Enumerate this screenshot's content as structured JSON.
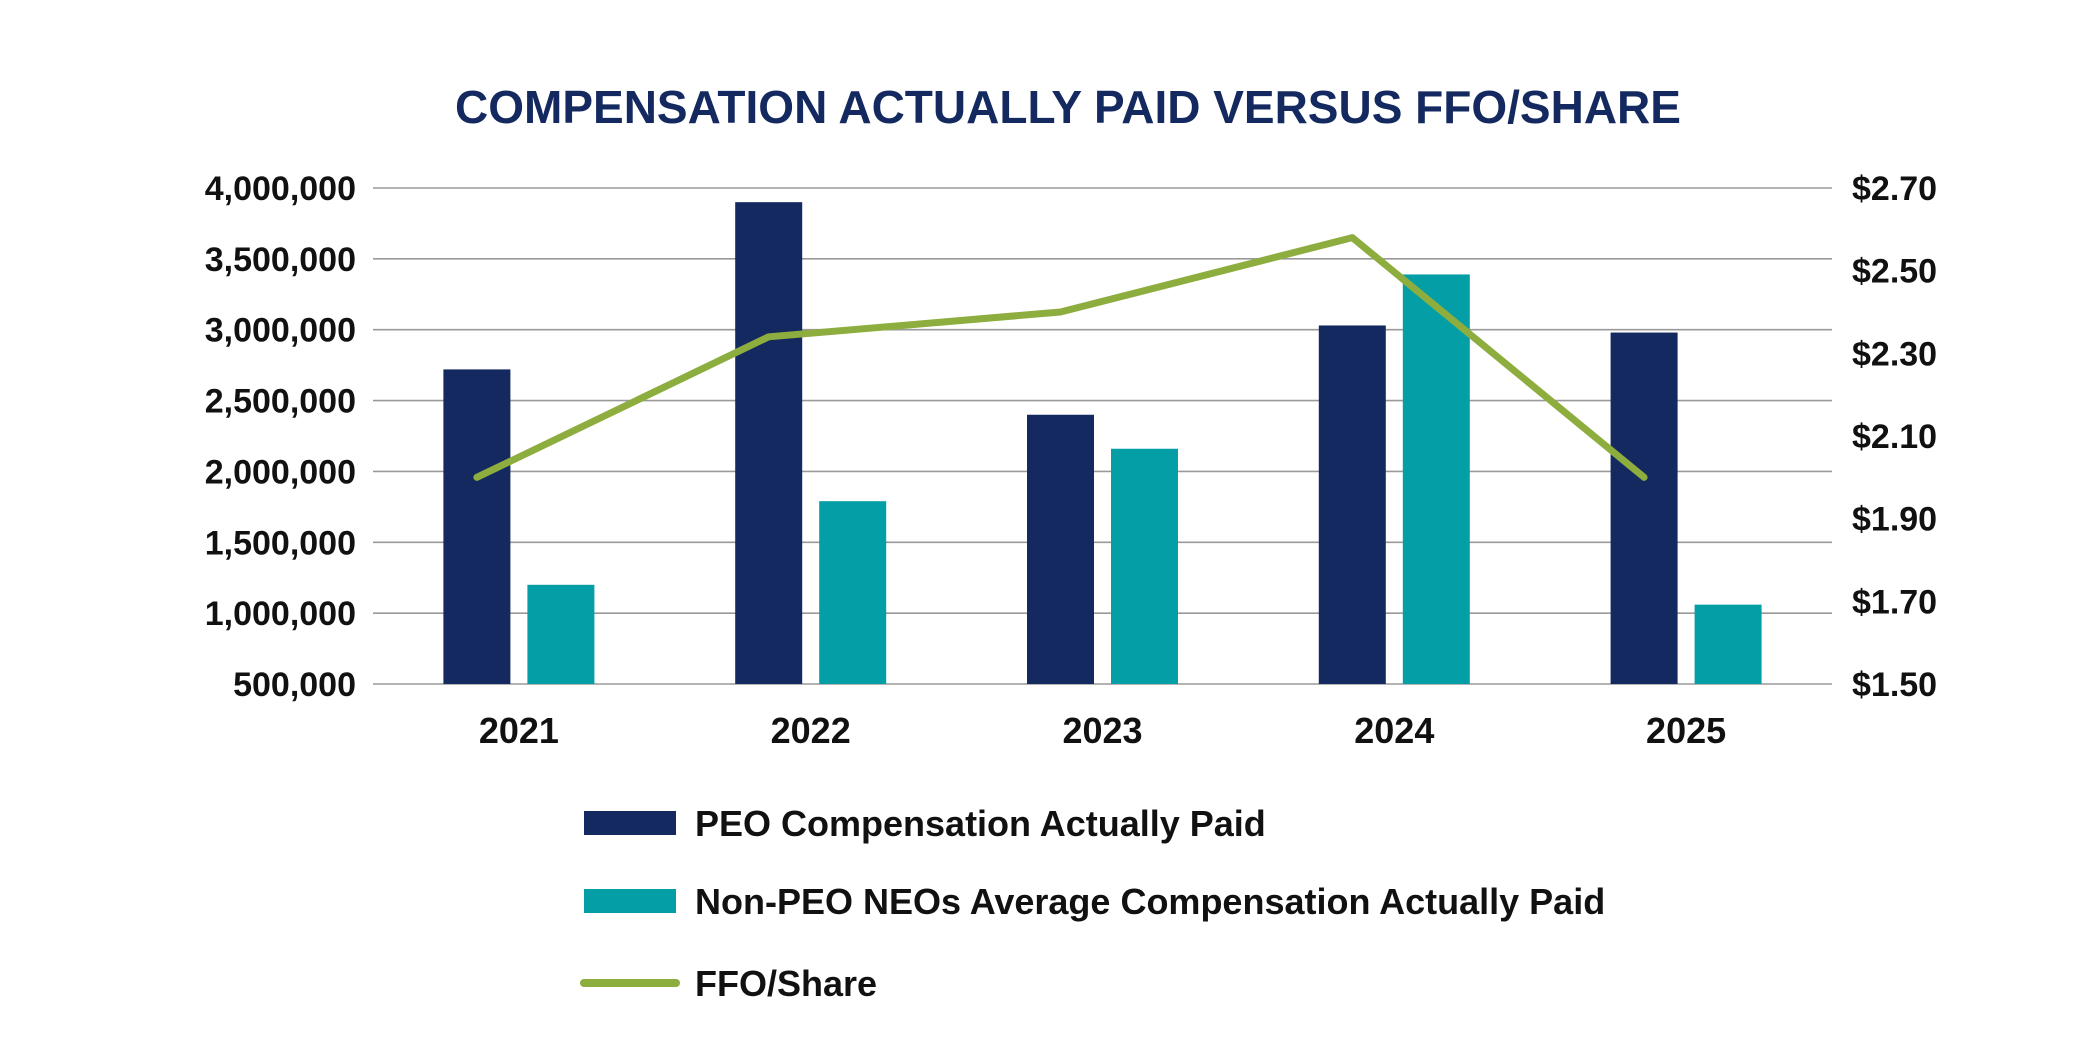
{
  "chart_data": {
    "type": "bar",
    "title": "COMPENSATION ACTUALLY PAID VERSUS FFO/SHARE",
    "categories": [
      "2021",
      "2022",
      "2023",
      "2024",
      "2025"
    ],
    "y_left": {
      "ylim": [
        500000,
        4000000
      ],
      "ticks": [
        500000,
        1000000,
        1500000,
        2000000,
        2500000,
        3000000,
        3500000,
        4000000
      ],
      "tick_labels": [
        "500,000",
        "1,000,000",
        "1,500,000",
        "2,000,000",
        "2,500,000",
        "3,000,000",
        "3,500,000",
        "4,000,000"
      ]
    },
    "y_right": {
      "ylim": [
        1.5,
        2.7
      ],
      "ticks": [
        1.5,
        1.7,
        1.9,
        2.1,
        2.3,
        2.5,
        2.7
      ],
      "tick_labels": [
        "$1.50",
        "$1.70",
        "$1.90",
        "$2.10",
        "$2.30",
        "$2.50",
        "$2.70"
      ]
    },
    "grid": true,
    "legend_position": "bottom",
    "series": [
      {
        "name": "PEO Compensation Actually Paid",
        "type": "bar",
        "axis": "left",
        "color": "#13295f",
        "values": [
          2720000,
          3900000,
          2400000,
          3030000,
          2980000
        ]
      },
      {
        "name": "Non-PEO NEOs Average Compensation Actually Paid",
        "type": "bar",
        "axis": "left",
        "color": "#049ea6",
        "values": [
          1200000,
          1790000,
          2160000,
          3390000,
          1060000
        ]
      },
      {
        "name": "FFO/Share",
        "type": "line",
        "axis": "right",
        "color": "#8ead3f",
        "values": [
          2.0,
          2.34,
          2.4,
          2.58,
          2.0
        ]
      }
    ]
  }
}
